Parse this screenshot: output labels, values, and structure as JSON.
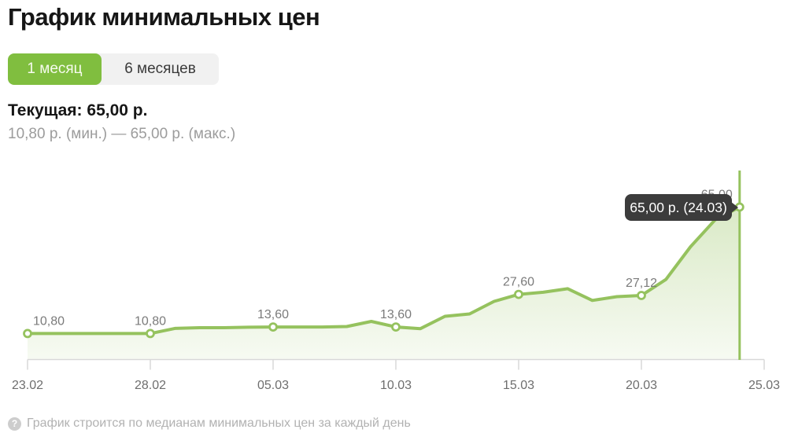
{
  "header": {
    "title": "График минимальных цен"
  },
  "tabs": [
    {
      "label": "1 месяц",
      "active": true
    },
    {
      "label": "6 месяцев",
      "active": false
    }
  ],
  "summary": {
    "current": "Текущая: 65,00 р.",
    "range": "10,80 р. (мин.) — 65,00 р. (макс.)"
  },
  "tooltip": {
    "text": "65,00 р. (24.03)"
  },
  "footer": {
    "icon": "question-icon",
    "icon_glyph": "?",
    "text": "График строится по медианам минимальных цен за каждый день"
  },
  "colors": {
    "tab_active_green": "#80be3f",
    "line_green": "#95c25e",
    "marker_fill": "#ffffff",
    "area_green": "#95c25e",
    "tooltip_bg": "#3c3c3c",
    "axis_line_gray": "#d8d8d8",
    "axis_label_gray": "#6e6e6e",
    "point_label_gray": "#7b7b7b",
    "text_dark": "#161616",
    "text_gray": "#9c9c9c",
    "footnote_gray": "#b2b2b2"
  },
  "chart_data": {
    "type": "area",
    "title": "График минимальных цен",
    "xlabel": "",
    "ylabel": "",
    "unit": "р.",
    "grid": false,
    "legend": null,
    "y_axis_visible": false,
    "ylim": [
      0,
      81
    ],
    "x_tick_labels": [
      "23.02",
      "28.02",
      "05.03",
      "10.03",
      "15.03",
      "20.03",
      "25.03"
    ],
    "x_tick_days": [
      0,
      5,
      10,
      15,
      20,
      25,
      30
    ],
    "x_range_days": [
      0,
      30
    ],
    "daily_values": [
      {
        "day": 0,
        "date": "23.02",
        "value": 10.8
      },
      {
        "day": 1,
        "date": "24.02",
        "value": 10.8
      },
      {
        "day": 2,
        "date": "25.02",
        "value": 10.8
      },
      {
        "day": 3,
        "date": "26.02",
        "value": 10.8
      },
      {
        "day": 4,
        "date": "27.02",
        "value": 10.8
      },
      {
        "day": 5,
        "date": "28.02",
        "value": 10.8
      },
      {
        "day": 6,
        "date": "01.03",
        "value": 13.0
      },
      {
        "day": 7,
        "date": "02.03",
        "value": 13.3
      },
      {
        "day": 8,
        "date": "03.03",
        "value": 13.3
      },
      {
        "day": 9,
        "date": "04.03",
        "value": 13.5
      },
      {
        "day": 10,
        "date": "05.03",
        "value": 13.6
      },
      {
        "day": 11,
        "date": "06.03",
        "value": 13.6
      },
      {
        "day": 12,
        "date": "07.03",
        "value": 13.6
      },
      {
        "day": 13,
        "date": "08.03",
        "value": 13.8
      },
      {
        "day": 14,
        "date": "09.03",
        "value": 16.0
      },
      {
        "day": 15,
        "date": "10.03",
        "value": 13.6
      },
      {
        "day": 16,
        "date": "11.03",
        "value": 12.9
      },
      {
        "day": 17,
        "date": "12.03",
        "value": 18.2
      },
      {
        "day": 18,
        "date": "13.03",
        "value": 19.2
      },
      {
        "day": 19,
        "date": "14.03",
        "value": 24.6
      },
      {
        "day": 20,
        "date": "15.03",
        "value": 27.6
      },
      {
        "day": 21,
        "date": "16.03",
        "value": 28.5
      },
      {
        "day": 22,
        "date": "17.03",
        "value": 30.0
      },
      {
        "day": 23,
        "date": "18.03",
        "value": 25.0
      },
      {
        "day": 24,
        "date": "19.03",
        "value": 26.6
      },
      {
        "day": 25,
        "date": "20.03",
        "value": 27.12
      },
      {
        "day": 26,
        "date": "21.03",
        "value": 34.0
      },
      {
        "day": 27,
        "date": "22.03",
        "value": 48.0
      },
      {
        "day": 28,
        "date": "23.03",
        "value": 59.5
      },
      {
        "day": 29,
        "date": "24.03",
        "value": 65.0
      }
    ],
    "labeled_points": [
      {
        "day": 0,
        "date": "23.02",
        "value": 10.8,
        "label": "10,80"
      },
      {
        "day": 5,
        "date": "28.02",
        "value": 10.8,
        "label": "10,80"
      },
      {
        "day": 10,
        "date": "05.03",
        "value": 13.6,
        "label": "13,60"
      },
      {
        "day": 15,
        "date": "10.03",
        "value": 13.6,
        "label": "13,60"
      },
      {
        "day": 20,
        "date": "15.03",
        "value": 27.6,
        "label": "27,60"
      },
      {
        "day": 25,
        "date": "20.03",
        "value": 27.12,
        "label": "27,12"
      },
      {
        "day": 29,
        "date": "24.03",
        "value": 65.0,
        "label": "65,00"
      }
    ],
    "highlight": {
      "day": 29,
      "date": "24.03",
      "value": 65.0,
      "tooltip_text": "65,00 р. (24.03)"
    }
  }
}
